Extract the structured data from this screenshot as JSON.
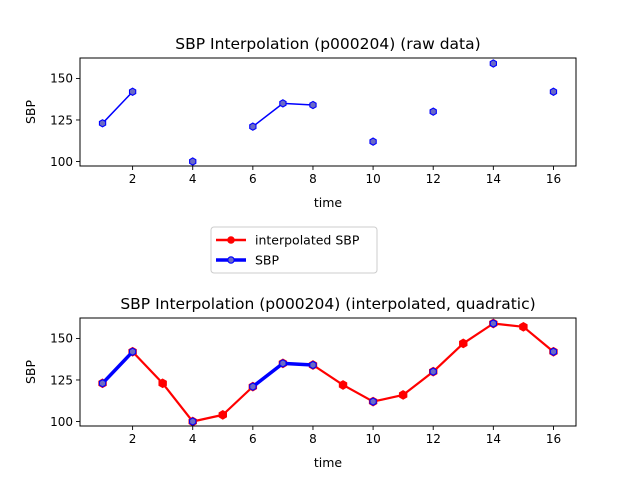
{
  "chart_data": [
    {
      "type": "line",
      "title": "SBP Interpolation (p000204) (raw data)",
      "xlabel": "time",
      "ylabel": "SBP",
      "xlim": [
        0.25,
        16.75
      ],
      "ylim": [
        97.3,
        162.3
      ],
      "xticks": [
        "2",
        "4",
        "6",
        "8",
        "10",
        "12",
        "14",
        "16"
      ],
      "yticks": [
        "100",
        "125",
        "150"
      ],
      "grid": false,
      "series": [
        {
          "name": "SBP",
          "color": "#0000ff",
          "marker_fill": "#6a6ac6",
          "points": [
            [
              1,
              123
            ],
            [
              2,
              142
            ],
            [
              3,
              null
            ],
            [
              4,
              100
            ],
            [
              5,
              null
            ],
            [
              6,
              121
            ],
            [
              7,
              135
            ],
            [
              8,
              134
            ],
            [
              9,
              null
            ],
            [
              10,
              112
            ],
            [
              11,
              null
            ],
            [
              12,
              130
            ],
            [
              13,
              null
            ],
            [
              14,
              159
            ],
            [
              15,
              null
            ],
            [
              16,
              142
            ]
          ]
        }
      ]
    },
    {
      "type": "line",
      "title": "SBP Interpolation (p000204) (interpolated, quadratic)",
      "xlabel": "time",
      "ylabel": "SBP",
      "xlim": [
        0.25,
        16.75
      ],
      "ylim": [
        97.3,
        162.3
      ],
      "xticks": [
        "2",
        "4",
        "6",
        "8",
        "10",
        "12",
        "14",
        "16"
      ],
      "yticks": [
        "100",
        "125",
        "150"
      ],
      "grid": false,
      "series": [
        {
          "name": "interpolated SBP",
          "color": "#ff0000",
          "points": [
            [
              1,
              123
            ],
            [
              2,
              142
            ],
            [
              3,
              123
            ],
            [
              4,
              100
            ],
            [
              5,
              104
            ],
            [
              6,
              121
            ],
            [
              7,
              135
            ],
            [
              8,
              134
            ],
            [
              9,
              122
            ],
            [
              10,
              112
            ],
            [
              11,
              116
            ],
            [
              12,
              130
            ],
            [
              13,
              147
            ],
            [
              14,
              159
            ],
            [
              15,
              157
            ],
            [
              16,
              142
            ]
          ]
        },
        {
          "name": "SBP",
          "color": "#0000ff",
          "marker_fill": "#6a6ac6",
          "points": [
            [
              1,
              123
            ],
            [
              2,
              142
            ],
            [
              3,
              null
            ],
            [
              4,
              100
            ],
            [
              5,
              null
            ],
            [
              6,
              121
            ],
            [
              7,
              135
            ],
            [
              8,
              134
            ],
            [
              9,
              null
            ],
            [
              10,
              112
            ],
            [
              11,
              null
            ],
            [
              12,
              130
            ],
            [
              13,
              null
            ],
            [
              14,
              159
            ],
            [
              15,
              null
            ],
            [
              16,
              142
            ]
          ]
        }
      ]
    }
  ],
  "legend": {
    "placement": "between-plots",
    "entries": [
      {
        "label": "interpolated SBP",
        "color": "#ff0000"
      },
      {
        "label": "SBP",
        "color": "#0000ff"
      }
    ]
  }
}
